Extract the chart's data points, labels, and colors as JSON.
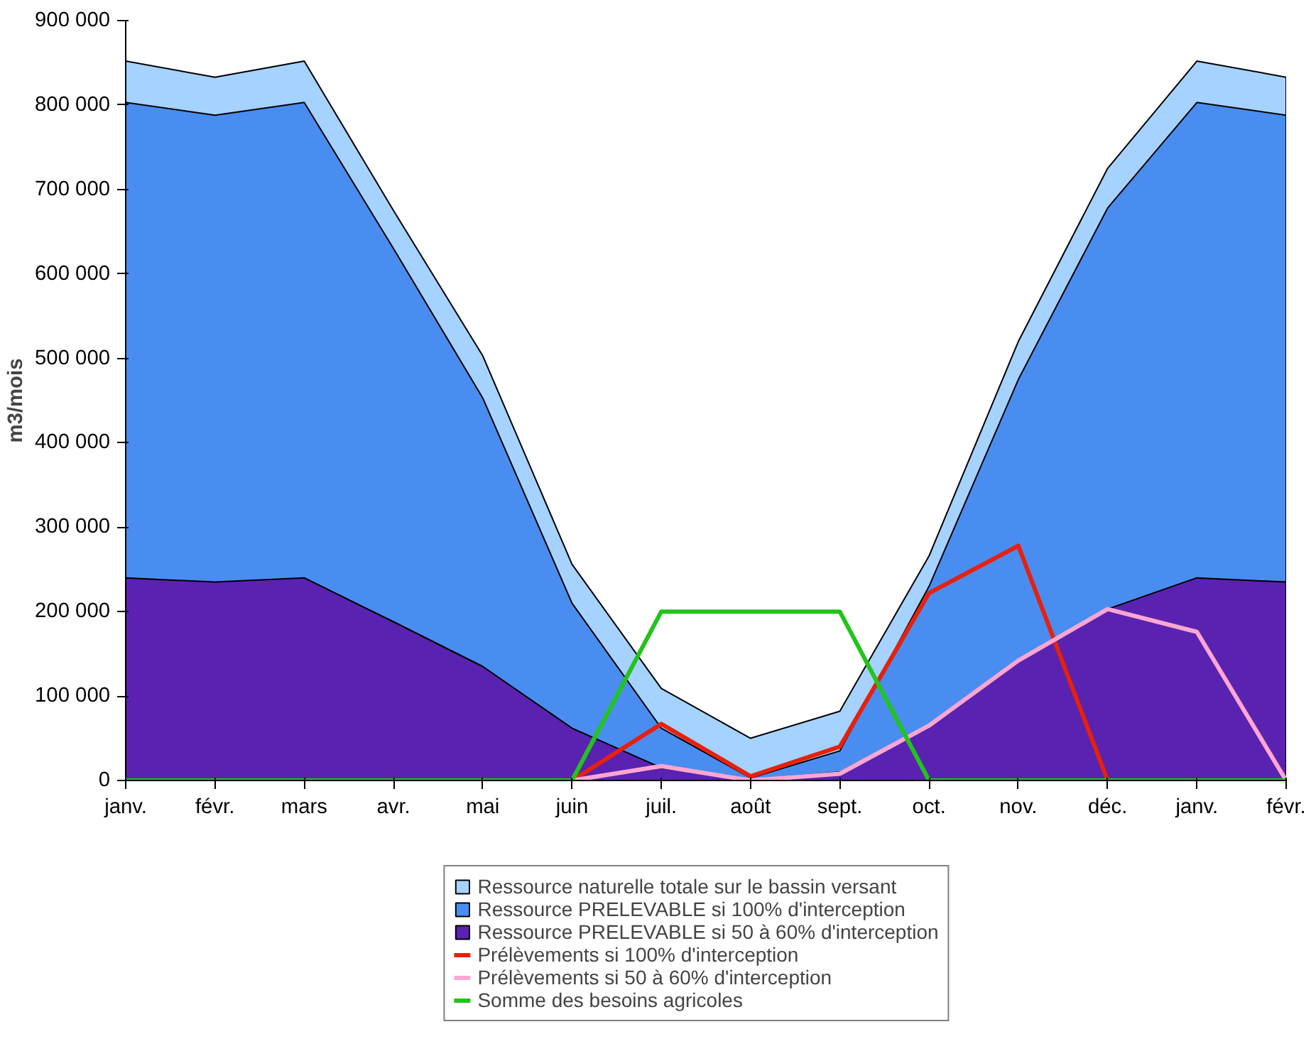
{
  "chart_data": {
    "type": "area",
    "ylabel": "m3/mois",
    "categories": [
      "janv.",
      "févr.",
      "mars",
      "avr.",
      "mai",
      "juin",
      "juil.",
      "août",
      "sept.",
      "oct.",
      "nov.",
      "déc.",
      "janv.",
      "févr."
    ],
    "ylim": [
      0,
      900000
    ],
    "yticks": [
      0,
      {
        "value": 100000,
        "label": "100 000"
      },
      {
        "value": 200000,
        "label": "200 000"
      },
      {
        "value": 300000,
        "label": "300 000"
      },
      {
        "value": 400000,
        "label": "400 000"
      },
      {
        "value": 500000,
        "label": "500 000"
      },
      {
        "value": 600000,
        "label": "600 000"
      },
      {
        "value": 700000,
        "label": "700 000"
      },
      {
        "value": 800000,
        "label": "800 000"
      },
      {
        "value": 900000,
        "label": "900 000"
      }
    ],
    "grid": false,
    "legend": "bottom",
    "series": [
      {
        "name": "Ressource naturelle totale sur le bassin versant",
        "color": "#a6d2ff",
        "values": [
          852000,
          833000,
          852000,
          675000,
          503000,
          256000,
          109000,
          50000,
          82000,
          266000,
          520000,
          725000,
          852000,
          833000
        ]
      },
      {
        "name": "Ressource PRELEVABLE si 100% d'interception",
        "color": "#4a8df0",
        "values": [
          803000,
          788000,
          803000,
          630000,
          453000,
          210000,
          62000,
          3000,
          35000,
          230000,
          475000,
          678000,
          803000,
          788000
        ]
      },
      {
        "name": "Ressource PRELEVABLE si 50 à 60% d'interception",
        "color": "#5a22b0",
        "values": [
          240000,
          235000,
          240000,
          188000,
          135000,
          62000,
          15000,
          1000,
          10000,
          65000,
          142000,
          203000,
          240000,
          235000
        ]
      },
      {
        "name": "Prélèvements si 100% d'interception",
        "type": "line",
        "color": "#e8200c",
        "values": [
          null,
          null,
          null,
          null,
          null,
          0,
          67000,
          5000,
          40000,
          222000,
          278000,
          0,
          null,
          null
        ]
      },
      {
        "name": "Prélèvements si 50 à 60% d'interception",
        "type": "line",
        "color": "#ffa6d2",
        "values": [
          null,
          null,
          null,
          null,
          null,
          0,
          17000,
          0,
          8000,
          65000,
          142000,
          203000,
          176000,
          0
        ]
      },
      {
        "name": "Somme des besoins agricoles",
        "type": "line",
        "color": "#22c41c",
        "values": [
          0,
          0,
          0,
          0,
          0,
          0,
          200000,
          200000,
          200000,
          0,
          0,
          0,
          0,
          0
        ]
      }
    ]
  }
}
